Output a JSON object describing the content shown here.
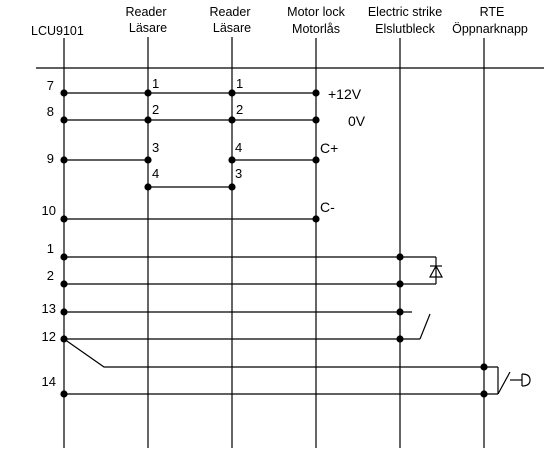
{
  "headers": {
    "lcu": "LCU9101",
    "reader1_en": "Reader",
    "reader1_sv": "Läsare",
    "reader2_en": "Reader",
    "reader2_sv": "Läsare",
    "motor_en": "Motor lock",
    "motor_sv": "Motorlås",
    "strike_en": "Electric strike",
    "strike_sv": "Elslutbleck",
    "rte_en": "RTE",
    "rte_sv": "Öppnarknapp"
  },
  "lcu_pins": [
    "7",
    "8",
    "9",
    "10",
    "1",
    "2",
    "13",
    "12",
    "14"
  ],
  "reader1_pins": [
    "1",
    "2",
    "3",
    "4"
  ],
  "reader2_pins": [
    "1",
    "2",
    "4",
    "3"
  ],
  "motor_signals": [
    "+12V",
    "0V",
    "C+",
    "C-"
  ]
}
